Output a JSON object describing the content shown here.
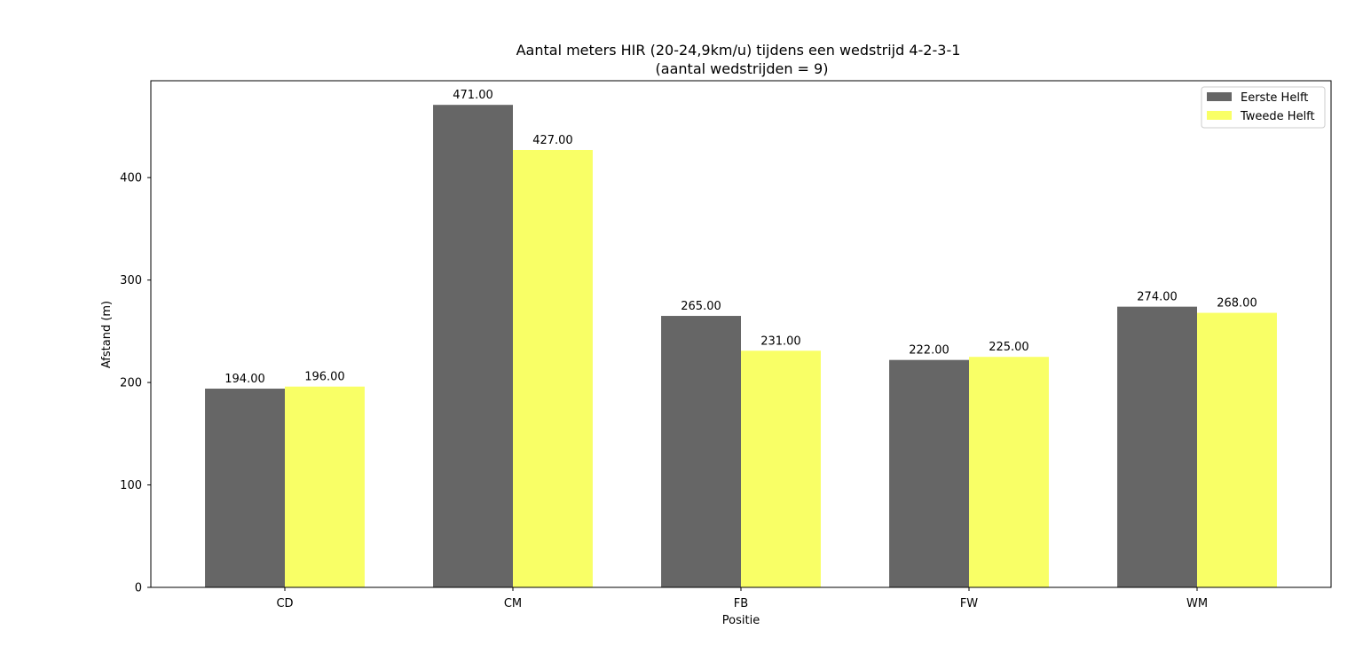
{
  "chart_data": {
    "type": "bar",
    "title": "Aantal meters HIR (20-24,9km/u) tijdens een wedstrijd 4-2-3-1",
    "subtitle": "(aantal wedstrijden = 9)",
    "xlabel": "Positie",
    "ylabel": "Afstand (m)",
    "categories": [
      "CD",
      "CM",
      "FB",
      "FW",
      "WM"
    ],
    "series": [
      {
        "name": "Eerste Helft",
        "color": "#666666",
        "values": [
          194,
          471,
          265,
          222,
          274
        ]
      },
      {
        "name": "Tweede Helft",
        "color": "#f9ff66",
        "values": [
          196,
          427,
          231,
          225,
          268
        ]
      }
    ],
    "ylim": [
      0,
      494.55
    ],
    "yticks": [
      0,
      100,
      200,
      300,
      400
    ],
    "value_format_decimals": 2,
    "grid": false,
    "legend_position": "top-right"
  }
}
